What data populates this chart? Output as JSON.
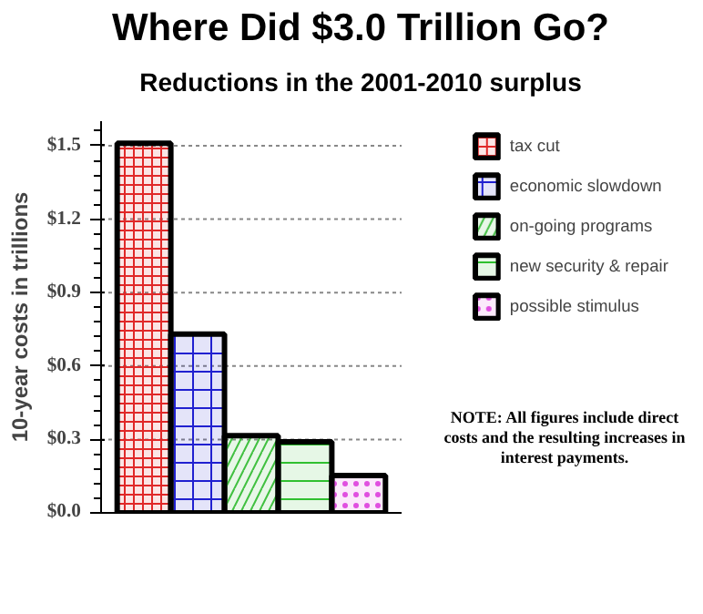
{
  "chart_data": {
    "type": "bar",
    "title": "Where Did $3.0 Trillion Go?",
    "subtitle": "Reductions in the 2001-2010 surplus",
    "ylabel": "10-year costs in trillions",
    "categories": [
      null,
      null,
      null,
      null,
      null
    ],
    "series": [
      {
        "name": "tax cut",
        "color": "#e02828",
        "values": [
          1.51,
          null,
          null,
          null,
          null
        ]
      },
      {
        "name": "economic slowdown",
        "color": "#2020d0",
        "values": [
          null,
          0.73,
          null,
          null,
          null
        ]
      },
      {
        "name": "on-going programs",
        "color": "#40c040",
        "values": [
          null,
          null,
          0.315,
          null,
          null
        ]
      },
      {
        "name": "new security & repair",
        "color": "#30c030",
        "values": [
          null,
          null,
          null,
          0.29,
          null
        ]
      },
      {
        "name": "possible stimulus",
        "color": "#e050e0",
        "values": [
          null,
          null,
          null,
          null,
          0.153
        ]
      }
    ],
    "ylim": [
      0,
      1.6
    ],
    "yticks": [
      {
        "value": 0,
        "label": "$0.0"
      },
      {
        "value": 0.3,
        "label": "$0.3"
      },
      {
        "value": 0.6,
        "label": "$0.6"
      },
      {
        "value": 0.9,
        "label": "$0.9"
      },
      {
        "value": 1.2,
        "label": "$1.2"
      },
      {
        "value": 1.5,
        "label": "$1.5"
      }
    ],
    "grid": "y",
    "legend": "right",
    "annotations": [
      "NOTE: All figures include direct costs and the resulting increases in interest payments."
    ]
  }
}
